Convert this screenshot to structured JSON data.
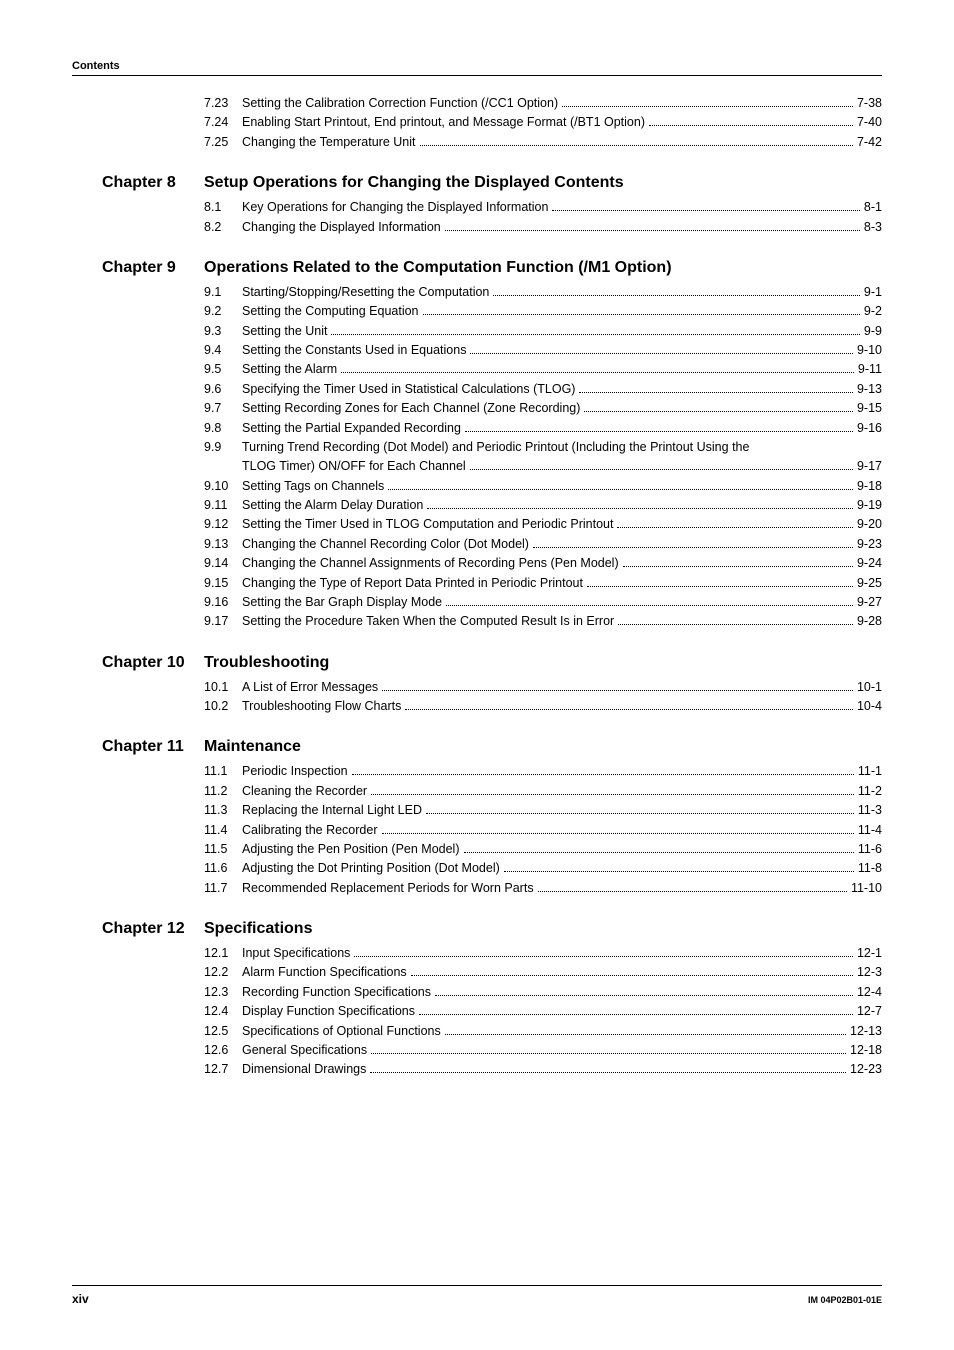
{
  "header": {
    "label": "Contents"
  },
  "footer": {
    "page_num": "xiv",
    "doc_id": "IM 04P02B01-01E"
  },
  "style": {
    "background": "#ffffff",
    "text_color": "#000000",
    "rule_color": "#000000",
    "body_fontsize": 12.5,
    "chapter_fontsize": 16,
    "header_fontsize": 11,
    "footer_left_fontsize": 12,
    "footer_right_fontsize": 9
  },
  "pre_items": [
    {
      "num": "7.23",
      "title": "Setting the Calibration Correction Function (/CC1 Option)",
      "page": "7-38"
    },
    {
      "num": "7.24",
      "title": "Enabling Start Printout, End printout, and Message Format (/BT1 Option)",
      "page": "7-40"
    },
    {
      "num": "7.25",
      "title": "Changing the Temperature Unit",
      "page": "7-42"
    }
  ],
  "chapters": [
    {
      "label": "Chapter 8",
      "title": "Setup Operations for Changing the Displayed Contents",
      "items": [
        {
          "num": "8.1",
          "title": "Key Operations for Changing the Displayed Information",
          "page": "8-1"
        },
        {
          "num": "8.2",
          "title": "Changing the Displayed Information",
          "page": "8-3"
        }
      ]
    },
    {
      "label": "Chapter 9",
      "title": "Operations Related to the Computation Function (/M1 Option)",
      "items": [
        {
          "num": "9.1",
          "title": "Starting/Stopping/Resetting the Computation",
          "page": "9-1"
        },
        {
          "num": "9.2",
          "title": "Setting the Computing Equation",
          "page": "9-2"
        },
        {
          "num": "9.3",
          "title": "Setting the Unit",
          "page": "9-9"
        },
        {
          "num": "9.4",
          "title": "Setting the Constants Used in Equations",
          "page": "9-10"
        },
        {
          "num": "9.5",
          "title": "Setting the Alarm",
          "page": "9-11"
        },
        {
          "num": "9.6",
          "title": "Specifying the Timer Used in Statistical Calculations (TLOG)",
          "page": "9-13"
        },
        {
          "num": "9.7",
          "title": "Setting Recording Zones for Each Channel (Zone Recording)",
          "page": "9-15"
        },
        {
          "num": "9.8",
          "title": "Setting the Partial Expanded Recording",
          "page": "9-16"
        },
        {
          "num": "9.9",
          "title": "Turning Trend Recording (Dot Model) and Periodic Printout (Including the Printout Using the",
          "cont": "TLOG Timer) ON/OFF for Each Channel",
          "page": "9-17"
        },
        {
          "num": "9.10",
          "title": "Setting Tags on Channels",
          "page": "9-18"
        },
        {
          "num": "9.11",
          "title": "Setting the Alarm Delay Duration",
          "page": "9-19"
        },
        {
          "num": "9.12",
          "title": "Setting the Timer Used in TLOG Computation and Periodic Printout",
          "page": "9-20"
        },
        {
          "num": "9.13",
          "title": "Changing the Channel Recording Color (Dot Model)",
          "page": "9-23"
        },
        {
          "num": "9.14",
          "title": "Changing the Channel Assignments of Recording Pens (Pen Model)",
          "page": "9-24"
        },
        {
          "num": "9.15",
          "title": "Changing the Type of Report Data Printed in Periodic Printout",
          "page": "9-25"
        },
        {
          "num": "9.16",
          "title": "Setting the Bar Graph Display Mode",
          "page": "9-27"
        },
        {
          "num": "9.17",
          "title": "Setting the Procedure Taken When the Computed Result Is in Error",
          "page": "9-28"
        }
      ]
    },
    {
      "label": "Chapter 10",
      "title": "Troubleshooting",
      "items": [
        {
          "num": "10.1",
          "title": "A List of Error Messages",
          "page": "10-1"
        },
        {
          "num": "10.2",
          "title": "Troubleshooting Flow Charts",
          "page": "10-4"
        }
      ]
    },
    {
      "label": "Chapter 11",
      "title": "Maintenance",
      "items": [
        {
          "num": "11.1",
          "title": "Periodic Inspection",
          "page": "11-1"
        },
        {
          "num": "11.2",
          "title": "Cleaning the Recorder",
          "page": "11-2"
        },
        {
          "num": "11.3",
          "title": "Replacing the Internal Light LED",
          "page": "11-3"
        },
        {
          "num": "11.4",
          "title": "Calibrating the Recorder",
          "page": "11-4"
        },
        {
          "num": "11.5",
          "title": "Adjusting the Pen Position (Pen Model)",
          "page": "11-6"
        },
        {
          "num": "11.6",
          "title": "Adjusting the Dot Printing Position (Dot Model)",
          "page": "11-8"
        },
        {
          "num": "11.7",
          "title": "Recommended Replacement Periods for Worn Parts",
          "page": "11-10"
        }
      ]
    },
    {
      "label": "Chapter 12",
      "title": "Specifications",
      "items": [
        {
          "num": "12.1",
          "title": "Input Specifications",
          "page": "12-1"
        },
        {
          "num": "12.2",
          "title": "Alarm Function Specifications",
          "page": "12-3"
        },
        {
          "num": "12.3",
          "title": "Recording Function Specifications",
          "page": "12-4"
        },
        {
          "num": "12.4",
          "title": "Display Function Specifications",
          "page": "12-7"
        },
        {
          "num": "12.5",
          "title": "Specifications of Optional Functions",
          "page": "12-13"
        },
        {
          "num": "12.6",
          "title": "General Specifications",
          "page": "12-18"
        },
        {
          "num": "12.7",
          "title": "Dimensional Drawings",
          "page": "12-23"
        }
      ]
    }
  ]
}
